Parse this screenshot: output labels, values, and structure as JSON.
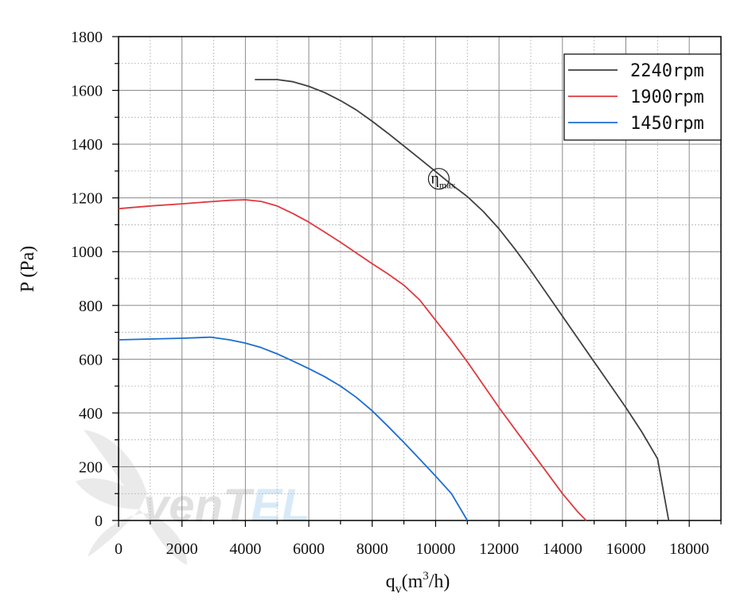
{
  "chart_data": {
    "type": "line",
    "xlabel_base": "q",
    "xlabel_sub": "v",
    "xlabel_unit_open": "(m",
    "xlabel_unit_sup": "3",
    "xlabel_unit_close": "/h)",
    "ylabel": "P (Pa)",
    "xlim": [
      0,
      19000
    ],
    "ylim": [
      0,
      1800
    ],
    "xticks": [
      0,
      2000,
      4000,
      6000,
      8000,
      10000,
      12000,
      14000,
      16000,
      18000
    ],
    "yticks": [
      0,
      200,
      400,
      600,
      800,
      1000,
      1200,
      1400,
      1600,
      1800
    ],
    "grid": true,
    "legend_position": "top-right",
    "series": [
      {
        "name": "2240rpm",
        "color": "#404040",
        "x": [
          4300,
          5000,
          5500,
          6000,
          6500,
          7000,
          7500,
          8000,
          8500,
          9000,
          9500,
          10000,
          10500,
          11000,
          11500,
          12000,
          12500,
          13000,
          13500,
          14000,
          14500,
          15000,
          15500,
          16000,
          16500,
          17000,
          17350
        ],
        "y": [
          1640,
          1640,
          1632,
          1615,
          1592,
          1562,
          1527,
          1485,
          1440,
          1393,
          1346,
          1298,
          1250,
          1205,
          1150,
          1085,
          1010,
          930,
          845,
          760,
          675,
          590,
          505,
          420,
          330,
          230,
          0
        ]
      },
      {
        "name": "1900rpm",
        "color": "#e0393e",
        "x": [
          0,
          1000,
          2000,
          3000,
          3500,
          4000,
          4500,
          5000,
          5500,
          6000,
          6500,
          7000,
          7500,
          8000,
          8500,
          9000,
          9500,
          10000,
          10500,
          11000,
          11500,
          12000,
          12500,
          13000,
          13500,
          14000,
          14500,
          14750
        ],
        "y": [
          1160,
          1170,
          1178,
          1187,
          1191,
          1193,
          1187,
          1170,
          1142,
          1110,
          1073,
          1035,
          995,
          955,
          917,
          875,
          820,
          745,
          670,
          590,
          505,
          420,
          340,
          260,
          180,
          100,
          30,
          0
        ]
      },
      {
        "name": "1450rpm",
        "color": "#1c6dd0",
        "x": [
          0,
          1000,
          2000,
          2500,
          2900,
          3500,
          4000,
          4500,
          5000,
          5500,
          6000,
          6500,
          7000,
          7500,
          8000,
          8500,
          9000,
          9500,
          10000,
          10500,
          11000
        ],
        "y": [
          672,
          675,
          678,
          680,
          682,
          672,
          660,
          643,
          620,
          593,
          565,
          535,
          500,
          458,
          408,
          350,
          290,
          228,
          165,
          100,
          0
        ]
      }
    ],
    "annotation": {
      "symbol": "η",
      "subscript": "max",
      "x": 10100,
      "y": 1265
    }
  },
  "watermark": {
    "text_main": "venT",
    "text_accent": "EL",
    "color_main": "#c8c8c8",
    "color_accent": "#b9d9f2"
  }
}
